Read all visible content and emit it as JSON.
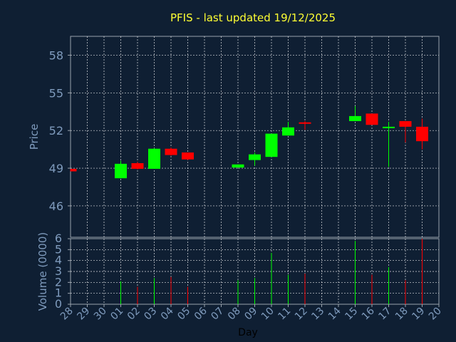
{
  "chart_data": {
    "type": "candlestick",
    "title": "PFIS - last updated 19/12/2025",
    "xlabel": "Day",
    "price_panel": {
      "ylabel": "Price",
      "ylim": [
        43.5,
        59.5
      ],
      "yticks": [
        46,
        49,
        52,
        55,
        58
      ]
    },
    "volume_panel": {
      "ylabel": "Volume (0000)",
      "ylim": [
        0,
        6
      ],
      "yticks": [
        0,
        1,
        2,
        3,
        4,
        5,
        6
      ]
    },
    "categories": [
      "28",
      "29",
      "30",
      "01",
      "02",
      "03",
      "04",
      "05",
      "06",
      "07",
      "08",
      "09",
      "10",
      "11",
      "12",
      "13",
      "14",
      "15",
      "16",
      "17",
      "18",
      "19",
      "20"
    ],
    "candles": [
      {
        "day": "28",
        "open": 48.95,
        "high": 48.95,
        "low": 48.75,
        "close": 48.75,
        "volume": null
      },
      {
        "day": "01",
        "open": 48.2,
        "high": 49.6,
        "low": 48.2,
        "close": 49.35,
        "volume": 2.1
      },
      {
        "day": "02",
        "open": 49.4,
        "high": 49.5,
        "low": 48.9,
        "close": 48.95,
        "volume": 1.6
      },
      {
        "day": "03",
        "open": 48.95,
        "high": 50.6,
        "low": 48.95,
        "close": 50.55,
        "volume": 2.4
      },
      {
        "day": "04",
        "open": 50.55,
        "high": 50.65,
        "low": 50.0,
        "close": 50.05,
        "volume": 2.5
      },
      {
        "day": "05",
        "open": 50.25,
        "high": 50.25,
        "low": 49.65,
        "close": 49.7,
        "volume": 1.6
      },
      {
        "day": "08",
        "open": 49.05,
        "high": 49.3,
        "low": 49.05,
        "close": 49.3,
        "volume": 2.2
      },
      {
        "day": "09",
        "open": 49.65,
        "high": 50.25,
        "low": 49.2,
        "close": 50.1,
        "volume": 2.4
      },
      {
        "day": "10",
        "open": 49.9,
        "high": 51.75,
        "low": 49.9,
        "close": 51.75,
        "volume": 4.7
      },
      {
        "day": "11",
        "open": 51.6,
        "high": 52.7,
        "low": 51.6,
        "close": 52.25,
        "volume": 2.7
      },
      {
        "day": "12",
        "open": 52.65,
        "high": 52.75,
        "low": 52.05,
        "close": 52.6,
        "volume": 2.8
      },
      {
        "day": "15",
        "open": 52.75,
        "high": 53.95,
        "low": 52.75,
        "close": 53.15,
        "volume": 5.8
      },
      {
        "day": "16",
        "open": 53.35,
        "high": 53.35,
        "low": 52.45,
        "close": 52.45,
        "volume": 2.7
      },
      {
        "day": "17",
        "open": 52.2,
        "high": 52.7,
        "low": 49.1,
        "close": 52.3,
        "volume": 3.4
      },
      {
        "day": "18",
        "open": 52.75,
        "high": 52.75,
        "low": 51.05,
        "close": 52.3,
        "volume": 2.2
      },
      {
        "day": "19",
        "open": 52.3,
        "high": 52.95,
        "low": 50.5,
        "close": 51.15,
        "volume": 6.0
      }
    ],
    "grid": true,
    "colors": {
      "up": "#00ff00",
      "down": "#ff0000",
      "title": "#ffff33",
      "axis_text": "#7f9bbd",
      "grid": "#ffffff",
      "background": "#0f1f33"
    }
  }
}
